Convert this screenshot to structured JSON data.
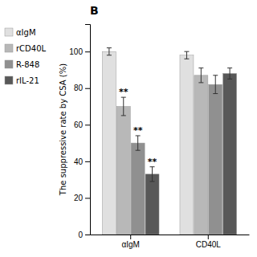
{
  "chart_data": {
    "type": "bar",
    "title": "B",
    "y_label": "The suppressive rate by CSA (%)",
    "categories": [
      "αIgM",
      "CD40L"
    ],
    "series": [
      {
        "name": "αIgM",
        "color": "#e0e0e0",
        "values": [
          100,
          98
        ],
        "errors": [
          2,
          2
        ]
      },
      {
        "name": "rCD40L",
        "color": "#b8b8b8",
        "values": [
          70,
          87
        ],
        "errors": [
          5,
          4
        ]
      },
      {
        "name": "R-848",
        "color": "#909090",
        "values": [
          50,
          82
        ],
        "errors": [
          4,
          5
        ]
      },
      {
        "name": "rIL-21",
        "color": "#585858",
        "values": [
          33,
          88
        ],
        "errors": [
          4,
          3
        ]
      }
    ],
    "annotations": [
      {
        "text": "**",
        "category": "αIgM",
        "series": "rCD40L"
      },
      {
        "text": "**",
        "category": "αIgM",
        "series": "R-848"
      },
      {
        "text": "**",
        "category": "αIgM",
        "series": "rIL-21"
      }
    ],
    "ylim": [
      0,
      115
    ],
    "yticks": [
      0,
      20,
      40,
      60,
      80,
      100
    ],
    "grid": false,
    "legend": "left"
  }
}
